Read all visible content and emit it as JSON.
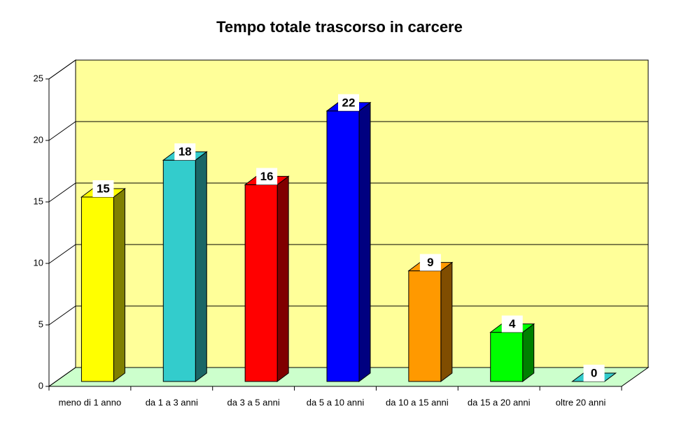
{
  "chart_data": {
    "type": "bar3d",
    "title": "Tempo totale trascorso in carcere",
    "categories": [
      "meno di 1 anno",
      "da 1 a 3 anni",
      "da 3 a 5 anni",
      "da 5 a 10 anni",
      "da 10 a 15 anni",
      "da 15 a 20 anni",
      "oltre 20 anni"
    ],
    "values": [
      15,
      18,
      16,
      22,
      9,
      4,
      0
    ],
    "colors": [
      "#ffff00",
      "#33cccc",
      "#ff0000",
      "#0000ff",
      "#ff9900",
      "#00ff00",
      "#33cccc"
    ],
    "ylim": [
      0,
      25
    ],
    "yticks": [
      0,
      5,
      10,
      15,
      20,
      25
    ],
    "grid": true,
    "wall_color": "#ffff99",
    "floor_color": "#ccffcc"
  }
}
